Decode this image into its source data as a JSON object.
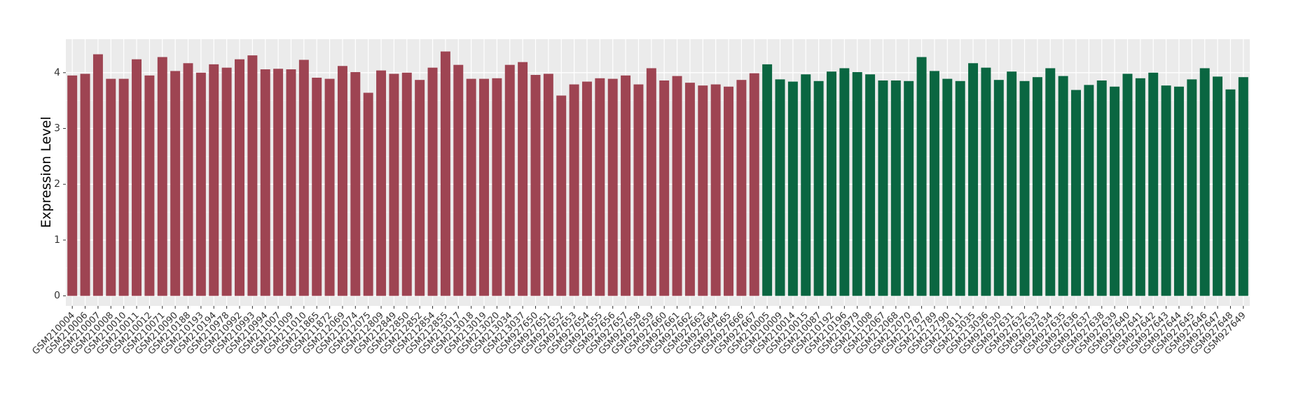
{
  "chart_data": {
    "type": "bar",
    "y_label": "Expression Level",
    "categories": [
      "GSM210004",
      "GSM210006",
      "GSM210007",
      "GSM210008",
      "GSM210010",
      "GSM210011",
      "GSM210012",
      "GSM210071",
      "GSM210090",
      "GSM210188",
      "GSM210193",
      "GSM210194",
      "GSM210978",
      "GSM210992",
      "GSM210993",
      "GSM210994",
      "GSM211007",
      "GSM211009",
      "GSM211010",
      "GSM211865",
      "GSM211872",
      "GSM212069",
      "GSM212074",
      "GSM212075",
      "GSM212809",
      "GSM212849",
      "GSM212850",
      "GSM212852",
      "GSM212854",
      "GSM212855",
      "GSM213017",
      "GSM213018",
      "GSM213019",
      "GSM213020",
      "GSM213034",
      "GSM213037",
      "GSM927650",
      "GSM927651",
      "GSM927652",
      "GSM927653",
      "GSM927654",
      "GSM927655",
      "GSM927656",
      "GSM927657",
      "GSM927658",
      "GSM927659",
      "GSM927660",
      "GSM927661",
      "GSM927662",
      "GSM927663",
      "GSM927664",
      "GSM927665",
      "GSM927666",
      "GSM927667",
      "GSM210005",
      "GSM210009",
      "GSM210014",
      "GSM210015",
      "GSM210087",
      "GSM210192",
      "GSM210196",
      "GSM210979",
      "GSM211008",
      "GSM212067",
      "GSM212068",
      "GSM212070",
      "GSM212787",
      "GSM212789",
      "GSM212790",
      "GSM212811",
      "GSM213035",
      "GSM213036",
      "GSM927630",
      "GSM927631",
      "GSM927632",
      "GSM927633",
      "GSM927634",
      "GSM927635",
      "GSM927636",
      "GSM927637",
      "GSM927638",
      "GSM927639",
      "GSM927640",
      "GSM927641",
      "GSM927642",
      "GSM927643",
      "GSM927644",
      "GSM927645",
      "GSM927646",
      "GSM927647",
      "GSM927648",
      "GSM927649"
    ],
    "values": [
      3.95,
      3.98,
      4.33,
      3.89,
      3.89,
      4.24,
      3.95,
      4.28,
      4.03,
      4.17,
      4.0,
      4.15,
      4.09,
      4.24,
      4.31,
      4.06,
      4.07,
      4.06,
      4.23,
      3.91,
      3.89,
      4.12,
      4.01,
      3.64,
      4.04,
      3.98,
      4.0,
      3.87,
      4.09,
      4.38,
      4.14,
      3.89,
      3.89,
      3.9,
      4.14,
      4.19,
      3.96,
      3.98,
      3.59,
      3.79,
      3.84,
      3.9,
      3.89,
      3.95,
      3.79,
      4.08,
      3.86,
      3.94,
      3.82,
      3.77,
      3.79,
      3.75,
      3.87,
      3.99,
      4.15,
      3.88,
      3.84,
      3.97,
      3.85,
      4.02,
      4.08,
      4.01,
      3.97,
      3.86,
      3.86,
      3.85,
      4.28,
      4.03,
      3.89,
      3.85,
      4.17,
      4.09,
      3.87,
      4.02,
      3.85,
      3.92,
      4.08,
      3.94,
      3.69,
      3.78,
      3.86,
      3.75,
      3.98,
      3.9,
      4.0,
      3.77,
      3.75,
      3.88,
      4.08,
      3.93,
      3.7,
      3.92
    ],
    "colors": [
      "#9e4452",
      "#9e4452",
      "#9e4452",
      "#9e4452",
      "#9e4452",
      "#9e4452",
      "#9e4452",
      "#9e4452",
      "#9e4452",
      "#9e4452",
      "#9e4452",
      "#9e4452",
      "#9e4452",
      "#9e4452",
      "#9e4452",
      "#9e4452",
      "#9e4452",
      "#9e4452",
      "#9e4452",
      "#9e4452",
      "#9e4452",
      "#9e4452",
      "#9e4452",
      "#9e4452",
      "#9e4452",
      "#9e4452",
      "#9e4452",
      "#9e4452",
      "#9e4452",
      "#9e4452",
      "#9e4452",
      "#9e4452",
      "#9e4452",
      "#9e4452",
      "#9e4452",
      "#9e4452",
      "#9e4452",
      "#9e4452",
      "#9e4452",
      "#9e4452",
      "#9e4452",
      "#9e4452",
      "#9e4452",
      "#9e4452",
      "#9e4452",
      "#9e4452",
      "#9e4452",
      "#9e4452",
      "#9e4452",
      "#9e4452",
      "#9e4452",
      "#9e4452",
      "#9e4452",
      "#9e4452",
      "#0a6641",
      "#0a6641",
      "#0a6641",
      "#0a6641",
      "#0a6641",
      "#0a6641",
      "#0a6641",
      "#0a6641",
      "#0a6641",
      "#0a6641",
      "#0a6641",
      "#0a6641",
      "#0a6641",
      "#0a6641",
      "#0a6641",
      "#0a6641",
      "#0a6641",
      "#0a6641",
      "#0a6641",
      "#0a6641",
      "#0a6641",
      "#0a6641",
      "#0a6641",
      "#0a6641",
      "#0a6641",
      "#0a6641",
      "#0a6641",
      "#0a6641",
      "#0a6641",
      "#0a6641",
      "#0a6641",
      "#0a6641",
      "#0a6641",
      "#0a6641",
      "#0a6641",
      "#0a6641",
      "#0a6641",
      "#0a6641"
    ],
    "ylim": [
      -0.18,
      4.6
    ],
    "yticks": [
      0,
      1,
      2,
      3,
      4
    ],
    "grid": true
  }
}
